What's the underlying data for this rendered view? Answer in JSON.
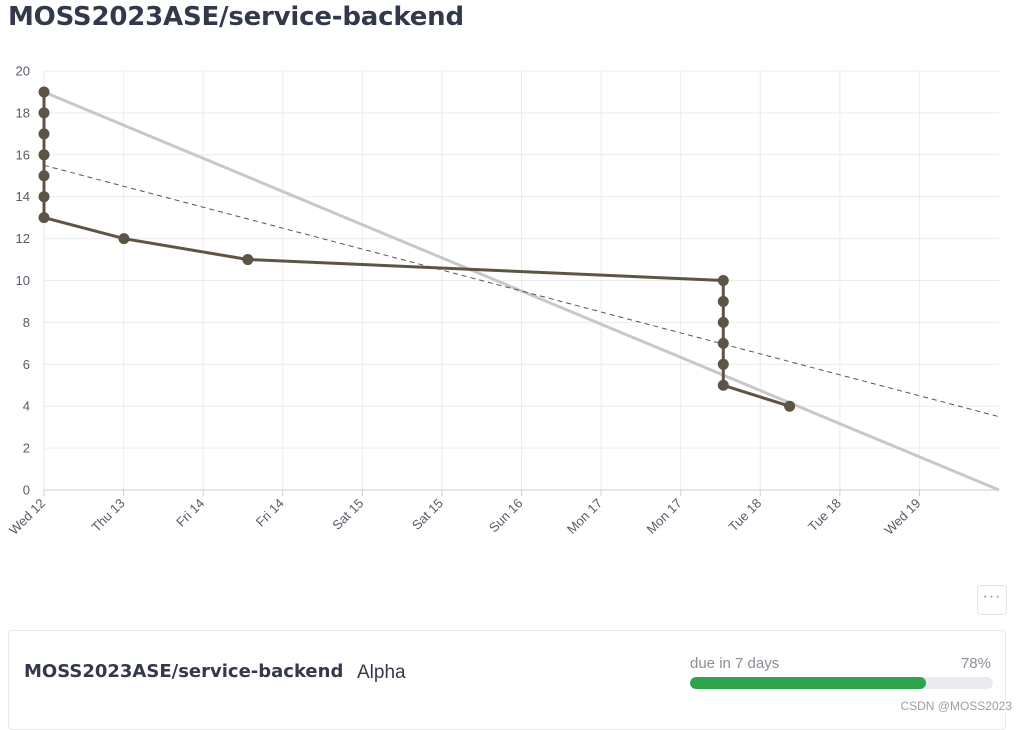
{
  "header": {
    "title": "MOSS2023ASE/service-backend"
  },
  "chart_data": {
    "type": "line",
    "title": "",
    "xlabel": "",
    "ylabel": "",
    "ylim": [
      0,
      20
    ],
    "yticks": [
      0,
      2,
      4,
      6,
      8,
      10,
      12,
      14,
      16,
      18,
      20
    ],
    "x_tick_labels": [
      "Wed 12",
      "Thu 13",
      "Fri 14",
      "Fri 14",
      "Sat 15",
      "Sat 15",
      "Sun 16",
      "Mon 17",
      "Mon 17",
      "Tue 18",
      "Tue 18",
      "Wed 19"
    ],
    "grid": true,
    "x_unit": "days since Wed 12 00:00",
    "xlim": [
      0,
      11.95
    ],
    "series": [
      {
        "name": "actual",
        "color": "#5e5446",
        "x": [
          0.0,
          0.0,
          0.0,
          0.0,
          0.0,
          0.0,
          0.0,
          1.0,
          2.55,
          8.5,
          8.5,
          8.5,
          8.5,
          8.5,
          8.5,
          9.33
        ],
        "y": [
          19,
          18,
          17,
          16,
          15,
          14,
          13,
          12,
          11,
          10,
          9,
          8,
          7,
          6,
          5,
          4
        ]
      },
      {
        "name": "ideal",
        "color": "#c8c8c8",
        "x": [
          0.0,
          11.95
        ],
        "y": [
          19,
          0
        ]
      },
      {
        "name": "trend",
        "color": "#555555",
        "x": [
          0.0,
          11.95
        ],
        "y": [
          15.5,
          3.5
        ]
      }
    ]
  },
  "toolbar": {
    "more_label": "···"
  },
  "milestone": {
    "repo": "MOSS2023ASE/service-backend",
    "name": "Alpha",
    "due": "due in 7 days",
    "percent_label": "78%",
    "progress": 0.78,
    "progress_color": "#2ea44f"
  },
  "watermark": "CSDN @MOSS2023"
}
